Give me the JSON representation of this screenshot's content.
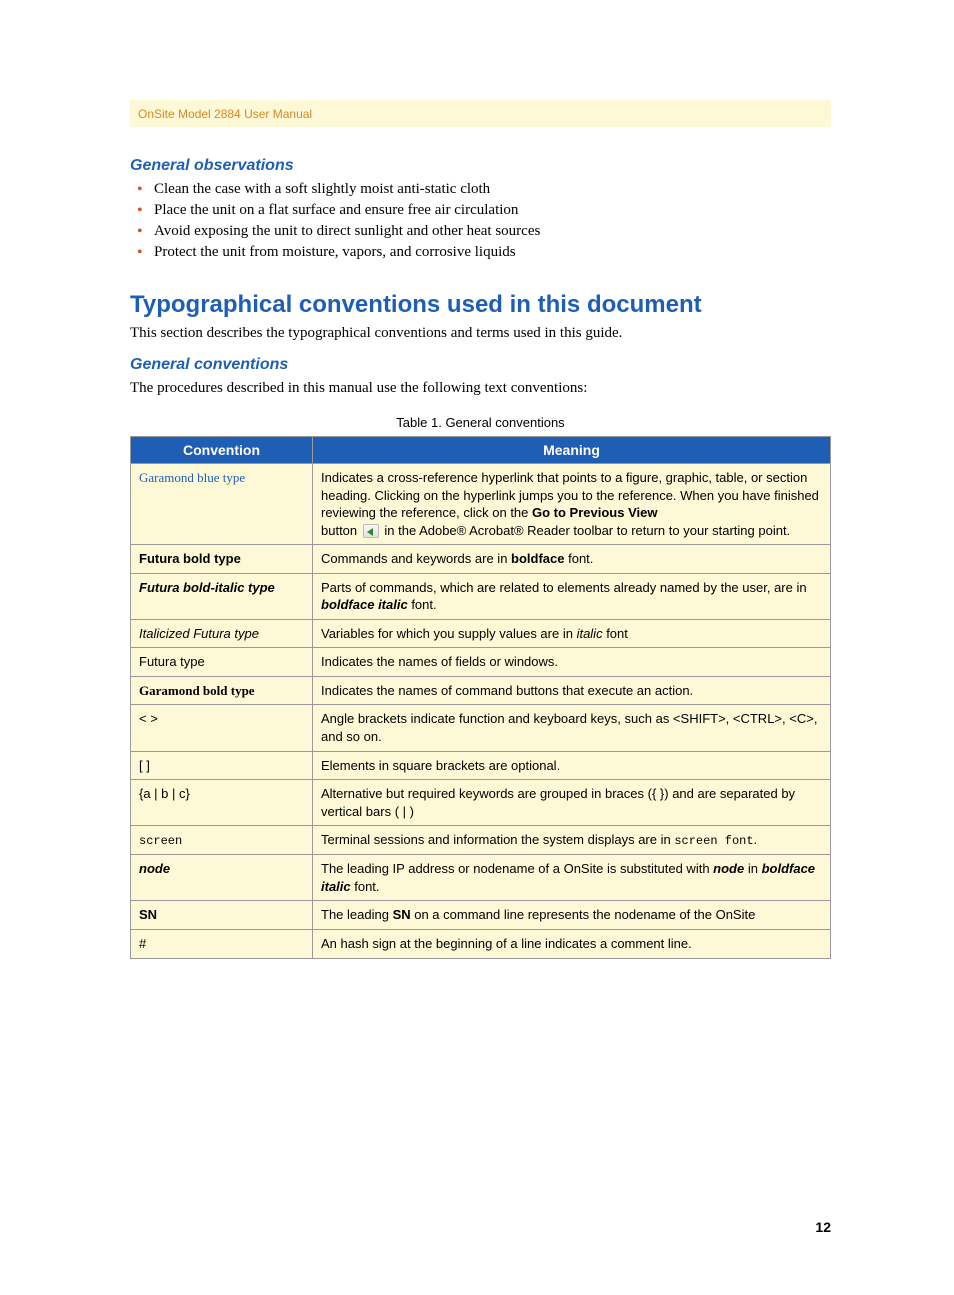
{
  "header": {
    "text": "OnSite Model 2884 User Manual"
  },
  "observations": {
    "title": "General observations",
    "items": [
      "Clean the case with a soft slightly moist anti-static cloth",
      "Place the unit on a flat surface and ensure free air circulation",
      "Avoid exposing the unit to direct sunlight and other heat sources",
      "Protect the unit from moisture, vapors, and corrosive liquids"
    ]
  },
  "section": {
    "title": "Typographical conventions used in this document",
    "intro": "This section describes the typographical conventions and terms used in this guide."
  },
  "conventions": {
    "title": "General conventions",
    "intro": "The procedures described in this manual use the following text conventions:",
    "caption": "Table 1. General conventions",
    "headers": {
      "col1": "Convention",
      "col2": "Meaning"
    },
    "rows": [
      {
        "conv_html": "<span class='gara-blue'>Garamond blue type</span>",
        "mean_html": "Indicates a cross-reference hyperlink that points to a figure, graphic, table, or section heading. Clicking on the hyperlink jumps you to the reference. When you have finished reviewing the reference, click on the <b>Go to Previous View</b><br>button <span class='inline-icon' data-name='go-previous-icon' data-interactable='false'></span> in the Adobe® Acrobat® Reader toolbar to return to your starting point."
      },
      {
        "conv_html": "<span class='fut-bold'>Futura bold type</span>",
        "mean_html": "Commands and keywords are in <b>boldface</b> font."
      },
      {
        "conv_html": "<span class='fut-bi'>Futura bold-italic type</span>",
        "mean_html": "Parts of commands, which are related to elements already named by the user, are in <b><i>boldface italic</i></b> font."
      },
      {
        "conv_html": "<span class='fut-it'>Italicized Futura type</span>",
        "mean_html": "Variables for which you supply values are in <i>italic</i> font"
      },
      {
        "conv_html": "<span class='fut'>Futura type</span>",
        "mean_html": "Indicates the names of fields or windows."
      },
      {
        "conv_html": "<span class='gara-bold'>Garamond bold type</span>",
        "mean_html": "Indicates the names of command buttons that execute an action."
      },
      {
        "conv_html": "&lt; &gt;",
        "mean_html": "Angle brackets indicate function and keyboard keys, such as &lt;SHIFT&gt;, &lt;CTRL&gt;, &lt;C&gt;, and so on."
      },
      {
        "conv_html": "[ ]",
        "mean_html": "Elements in square brackets are optional."
      },
      {
        "conv_html": "{a | b | c}",
        "mean_html": "Alternative but required keywords are grouped in braces ({ }) and are separated by vertical bars ( | )"
      },
      {
        "conv_html": "<span class='mono'>screen</span>",
        "mean_html": "Terminal sessions and information the system displays are in <span class='mono'>screen font</span>."
      },
      {
        "conv_html": "<b><i>node</i></b>",
        "mean_html": "The leading IP address or nodename of a OnSite is substituted with <b><i>node</i></b> in <b><i>boldface italic</i></b> font."
      },
      {
        "conv_html": "<b>SN</b>",
        "mean_html": "The leading <b>SN</b> on a command line represents the nodename of the OnSite"
      },
      {
        "conv_html": "#",
        "mean_html": "An hash sign at the beginning of a line indicates a comment line."
      }
    ]
  },
  "page_number": "12",
  "styling": {
    "heading_color": "#1e5fb5",
    "bullet_color": "#cf5522",
    "header_bg": "#fdf8d6",
    "header_text_color": "#d38b26",
    "table_header_bg": "#1e5fb5",
    "table_bg": "#fdf8d6",
    "border_color": "#999999",
    "body_fontsize": 15,
    "table_fontsize": 13
  }
}
